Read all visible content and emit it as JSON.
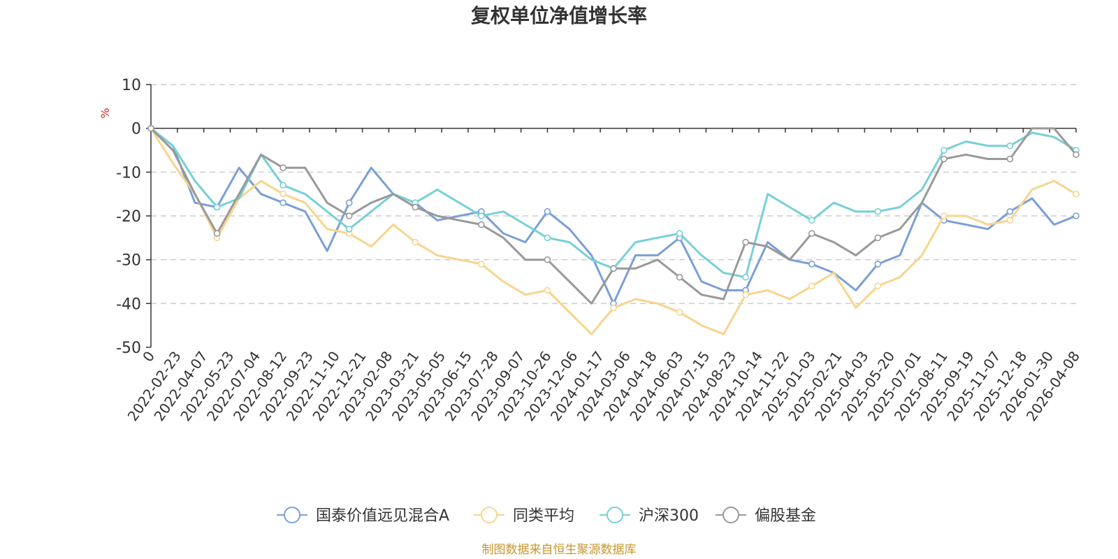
{
  "chart_data": {
    "type": "line",
    "title": "复权单位净值增长率",
    "ylabel": "%",
    "ylim": [
      -50,
      10
    ],
    "yticks": [
      10,
      0,
      -10,
      -20,
      -30,
      -40,
      -50
    ],
    "xlabels": [
      "0",
      "2022-02-23",
      "2022-04-07",
      "2022-05-23",
      "2022-07-04",
      "2022-08-12",
      "2022-09-23",
      "2022-11-10",
      "2022-12-21",
      "2023-02-08",
      "2023-03-21",
      "2023-05-05",
      "2023-06-15",
      "2023-07-28",
      "2023-09-07",
      "2023-10-26",
      "2023-12-06",
      "2024-01-17",
      "2024-03-06",
      "2024-04-18",
      "2024-06-03",
      "2024-07-15",
      "2024-08-23",
      "2024-10-14",
      "2024-11-22",
      "2025-01-03",
      "2025-02-21",
      "2025-04-03",
      "2025-05-20",
      "2025-07-01",
      "2025-08-11",
      "2025-09-19",
      "2025-11-07",
      "2025-12-18",
      "2026-01-30",
      "2026-04-08"
    ],
    "series": [
      {
        "name": "国泰价值远见混合A",
        "color": "#7b9fd6",
        "values": [
          0,
          -4,
          -17,
          -18,
          -9,
          -15,
          -17,
          -19,
          -28,
          -17,
          -9,
          -15,
          -17,
          -21,
          -20,
          -19,
          -24,
          -26,
          -19,
          -23,
          -29,
          -40,
          -29,
          -29,
          -25,
          -35,
          -37,
          -37,
          -26,
          -30,
          -31,
          -33,
          -37,
          -31,
          -29,
          -17,
          -21,
          -22,
          -23,
          -19,
          -16,
          -22,
          -20
        ]
      },
      {
        "name": "同类平均",
        "color": "#f8d48e",
        "values": [
          0,
          -8,
          -15,
          -25,
          -16,
          -12,
          -15,
          -17,
          -23,
          -24,
          -27,
          -22,
          -26,
          -29,
          -30,
          -31,
          -35,
          -38,
          -37,
          -42,
          -47,
          -41,
          -39,
          -40,
          -42,
          -45,
          -47,
          -38,
          -37,
          -39,
          -36,
          -33,
          -41,
          -36,
          -34,
          -29,
          -20,
          -20,
          -22,
          -21,
          -14,
          -12,
          -15
        ]
      },
      {
        "name": "沪深300",
        "color": "#77d0d6",
        "values": [
          0,
          -4,
          -12,
          -18,
          -16,
          -6,
          -13,
          -15,
          -19,
          -23,
          -19,
          -15,
          -17,
          -14,
          -17,
          -20,
          -19,
          -22,
          -25,
          -26,
          -30,
          -32,
          -26,
          -25,
          -24,
          -29,
          -33,
          -34,
          -15,
          -18,
          -21,
          -17,
          -19,
          -19,
          -18,
          -14,
          -5,
          -3,
          -4,
          -4,
          -1,
          -2,
          -5
        ]
      },
      {
        "name": "偏股基金",
        "color": "#999999",
        "values": [
          0,
          -5,
          -15,
          -24,
          -15,
          -6,
          -9,
          -9,
          -17,
          -20,
          -17,
          -15,
          -18,
          -20,
          -21,
          -22,
          -25,
          -30,
          -30,
          -35,
          -40,
          -32,
          -32,
          -30,
          -34,
          -38,
          -39,
          -26,
          -27,
          -30,
          -24,
          -26,
          -29,
          -25,
          -23,
          -17,
          -7,
          -6,
          -7,
          -7,
          0,
          0,
          -6
        ]
      }
    ]
  },
  "source": "制图数据来自恒生聚源数据库"
}
